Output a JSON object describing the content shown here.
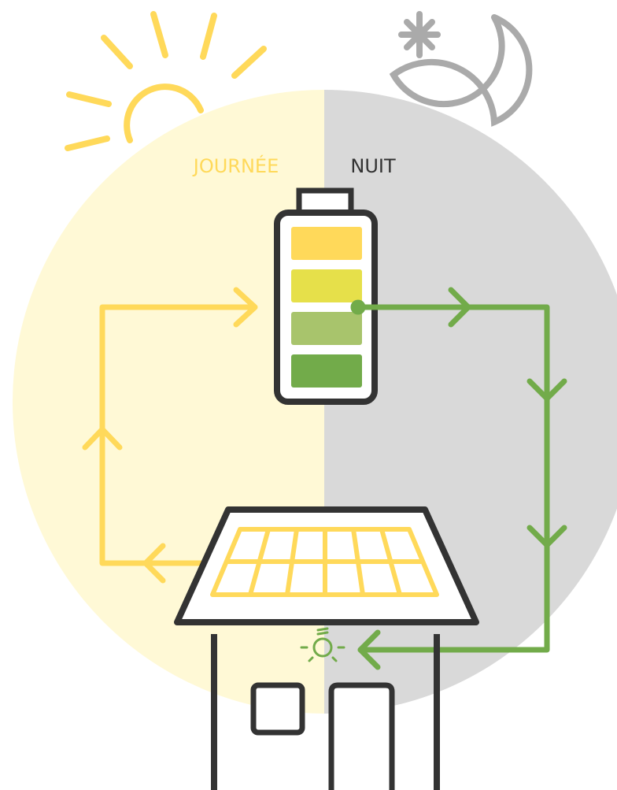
{
  "labels": {
    "day": "JOURNÉE",
    "night": "NUIT"
  }
}
